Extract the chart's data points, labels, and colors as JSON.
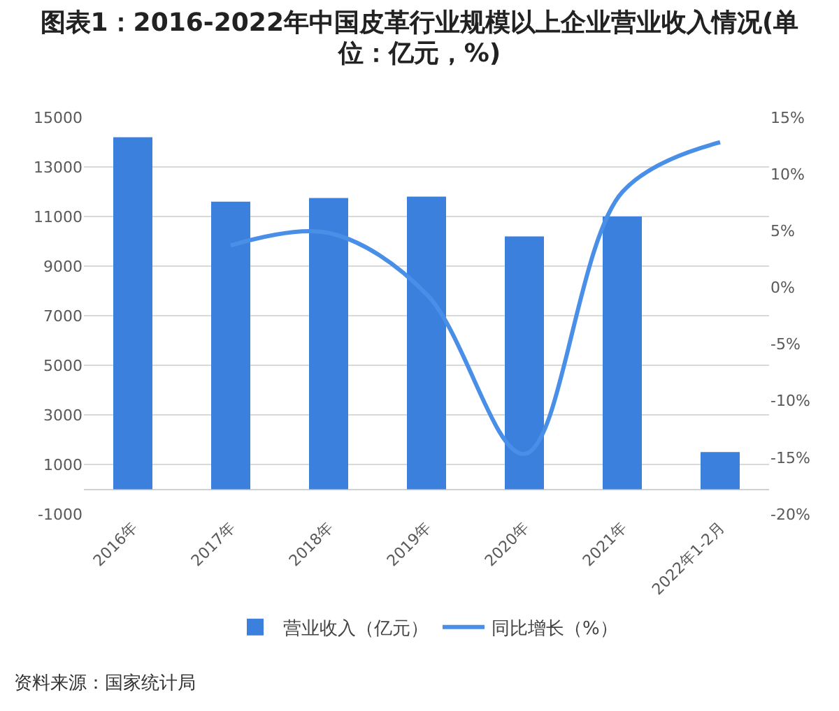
{
  "chart_data": {
    "type": "bar",
    "title": "图表1：2016-2022年中国皮革行业规模以上企业营业收入情况(单位：亿元，%)",
    "annotations": [
      "资料来源：国家统计局"
    ],
    "categories": [
      "2016年",
      "2017年",
      "2018年",
      "2019年",
      "2020年",
      "2021年",
      "2022年1-2月"
    ],
    "series": [
      {
        "name": "营业收入（亿元）",
        "color": "#3b80dd",
        "values": [
          14200,
          11600,
          11750,
          11800,
          10200,
          11000,
          1500
        ]
      },
      {
        "name": "同比增长（%）",
        "type": "line",
        "axis": "y2",
        "color": "#4a8fe7",
        "values": [
          null,
          3.7,
          4.8,
          -0.6,
          -14.7,
          8.4,
          12.8
        ]
      }
    ],
    "ylim": [
      -1000,
      15000
    ],
    "yticks": [
      -1000,
      1000,
      3000,
      5000,
      7000,
      9000,
      11000,
      13000,
      15000
    ],
    "y2lim": [
      -20,
      15
    ],
    "y2ticks": [
      {
        "value": -20,
        "label": "-20%"
      },
      {
        "value": -15,
        "label": "-15%"
      },
      {
        "value": -10,
        "label": "-10%"
      },
      {
        "value": -5,
        "label": "-5%"
      },
      {
        "value": 0,
        "label": "0%"
      },
      {
        "value": 5,
        "label": "5%"
      },
      {
        "value": 10,
        "label": "10%"
      },
      {
        "value": 15,
        "label": "15%"
      }
    ],
    "grid": "y",
    "legend": "bottom"
  }
}
